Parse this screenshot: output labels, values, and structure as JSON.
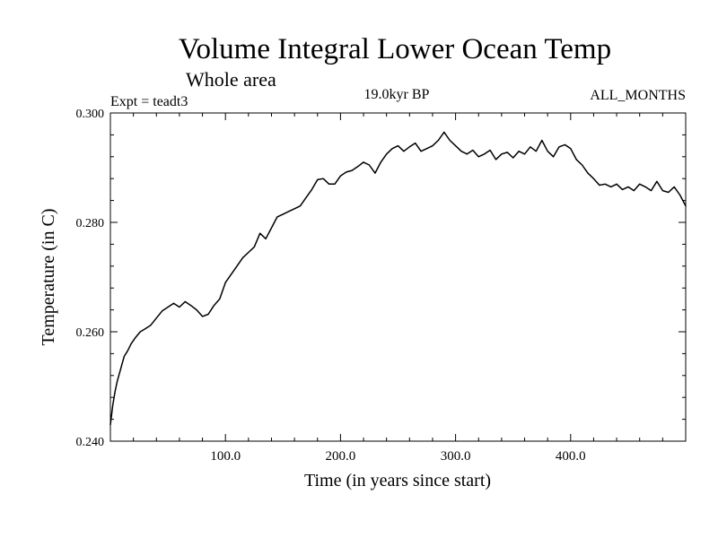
{
  "chart_data": {
    "type": "line",
    "title": "Volume Integral Lower Ocean Temp",
    "subtitle": "Whole area",
    "experiment_label": "Expt = teadt3",
    "period_label": "19.0kyr BP",
    "months_label": "ALL_MONTHS",
    "xlabel": "Time (in years since start)",
    "ylabel": "Temperature (in C)",
    "xlim": [
      0,
      500
    ],
    "ylim": [
      0.24,
      0.3
    ],
    "x_ticks": [
      100,
      200,
      300,
      400
    ],
    "x_tick_labels": [
      "100.0",
      "200.0",
      "300.0",
      "400.0"
    ],
    "y_ticks": [
      0.24,
      0.26,
      0.28,
      0.3
    ],
    "y_tick_labels": [
      "0.240",
      "0.260",
      "0.280",
      "0.300"
    ],
    "grid": false,
    "series": [
      {
        "name": "Volume Integral Lower Ocean Temp",
        "color": "#000000",
        "x": [
          0,
          2,
          4,
          6,
          8,
          10,
          12,
          15,
          18,
          22,
          26,
          30,
          35,
          40,
          45,
          50,
          55,
          60,
          65,
          70,
          75,
          80,
          85,
          90,
          95,
          100,
          105,
          110,
          115,
          120,
          125,
          130,
          135,
          140,
          145,
          150,
          155,
          160,
          165,
          170,
          175,
          180,
          185,
          190,
          195,
          200,
          205,
          210,
          215,
          220,
          225,
          230,
          235,
          240,
          245,
          250,
          255,
          260,
          265,
          270,
          275,
          280,
          285,
          290,
          295,
          300,
          305,
          310,
          315,
          320,
          325,
          330,
          335,
          340,
          345,
          350,
          355,
          360,
          365,
          370,
          375,
          380,
          385,
          390,
          395,
          400,
          405,
          410,
          415,
          420,
          425,
          430,
          435,
          440,
          445,
          450,
          455,
          460,
          465,
          470,
          475,
          480,
          485,
          490,
          495,
          500
        ],
        "y": [
          0.243,
          0.2465,
          0.249,
          0.251,
          0.2525,
          0.254,
          0.2555,
          0.2565,
          0.2578,
          0.259,
          0.26,
          0.2605,
          0.2612,
          0.2625,
          0.2638,
          0.2645,
          0.2652,
          0.2645,
          0.2655,
          0.2648,
          0.264,
          0.2628,
          0.2632,
          0.2648,
          0.266,
          0.269,
          0.2705,
          0.272,
          0.2735,
          0.2745,
          0.2755,
          0.278,
          0.277,
          0.279,
          0.281,
          0.2815,
          0.282,
          0.2825,
          0.283,
          0.2845,
          0.286,
          0.2878,
          0.288,
          0.287,
          0.287,
          0.2885,
          0.2892,
          0.2895,
          0.2902,
          0.291,
          0.2905,
          0.289,
          0.291,
          0.2925,
          0.2935,
          0.294,
          0.293,
          0.2938,
          0.2945,
          0.293,
          0.2935,
          0.294,
          0.295,
          0.2965,
          0.295,
          0.294,
          0.293,
          0.2925,
          0.2932,
          0.292,
          0.2925,
          0.2932,
          0.2915,
          0.2925,
          0.2928,
          0.2918,
          0.293,
          0.2925,
          0.2938,
          0.293,
          0.295,
          0.293,
          0.292,
          0.2938,
          0.2942,
          0.2935,
          0.2915,
          0.2905,
          0.289,
          0.288,
          0.2868,
          0.287,
          0.2865,
          0.287,
          0.286,
          0.2865,
          0.2858,
          0.287,
          0.2865,
          0.2858,
          0.2875,
          0.2858,
          0.2855,
          0.2865,
          0.285,
          0.283
        ]
      }
    ]
  }
}
